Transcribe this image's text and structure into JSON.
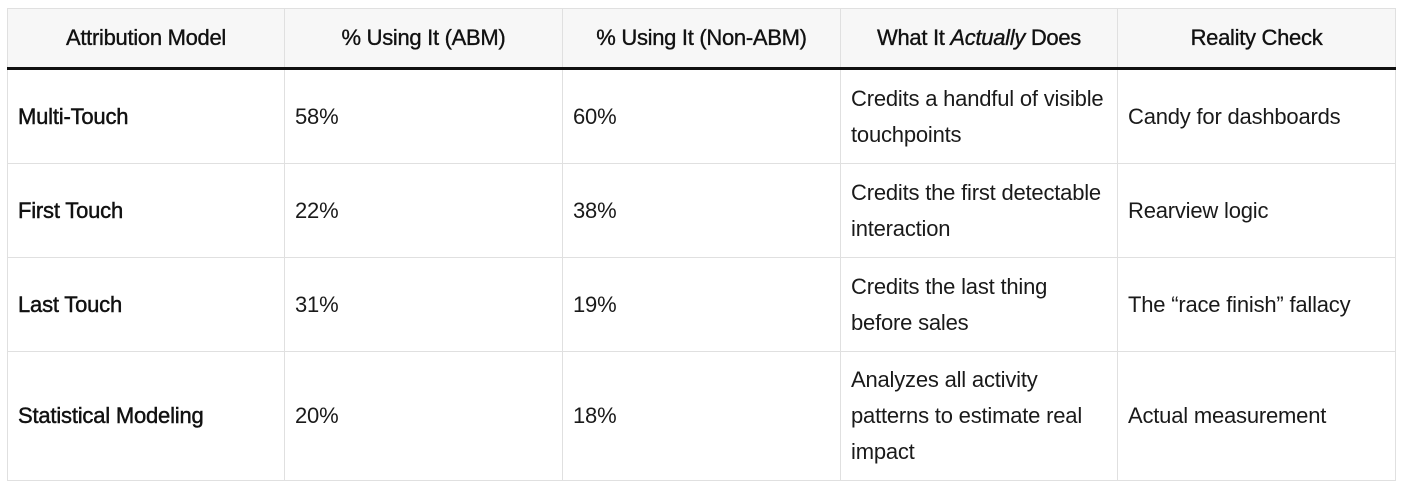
{
  "table": {
    "headers": [
      {
        "text": "Attribution Model"
      },
      {
        "text": "% Using It (ABM)"
      },
      {
        "text": "% Using It (Non-ABM)"
      },
      {
        "prefix": "What It ",
        "emphasis": "Actually",
        "suffix": " Does"
      },
      {
        "text": "Reality Check"
      }
    ],
    "rows": [
      {
        "model": "Multi-Touch",
        "abm": "58%",
        "non_abm": "60%",
        "does": "Credits a handful of visible touchpoints",
        "reality": "Candy for dashboards"
      },
      {
        "model": "First Touch",
        "abm": "22%",
        "non_abm": "38%",
        "does": "Credits the first detectable interaction",
        "reality": "Rearview logic"
      },
      {
        "model": "Last Touch",
        "abm": "31%",
        "non_abm": "19%",
        "does": "Credits the last thing before sales",
        "reality": "The “race finish” fallacy"
      },
      {
        "model": "Statistical Modeling",
        "abm": "20%",
        "non_abm": "18%",
        "does": "Analyzes all activity patterns to estimate real impact",
        "reality": "Actual measurement"
      }
    ]
  }
}
